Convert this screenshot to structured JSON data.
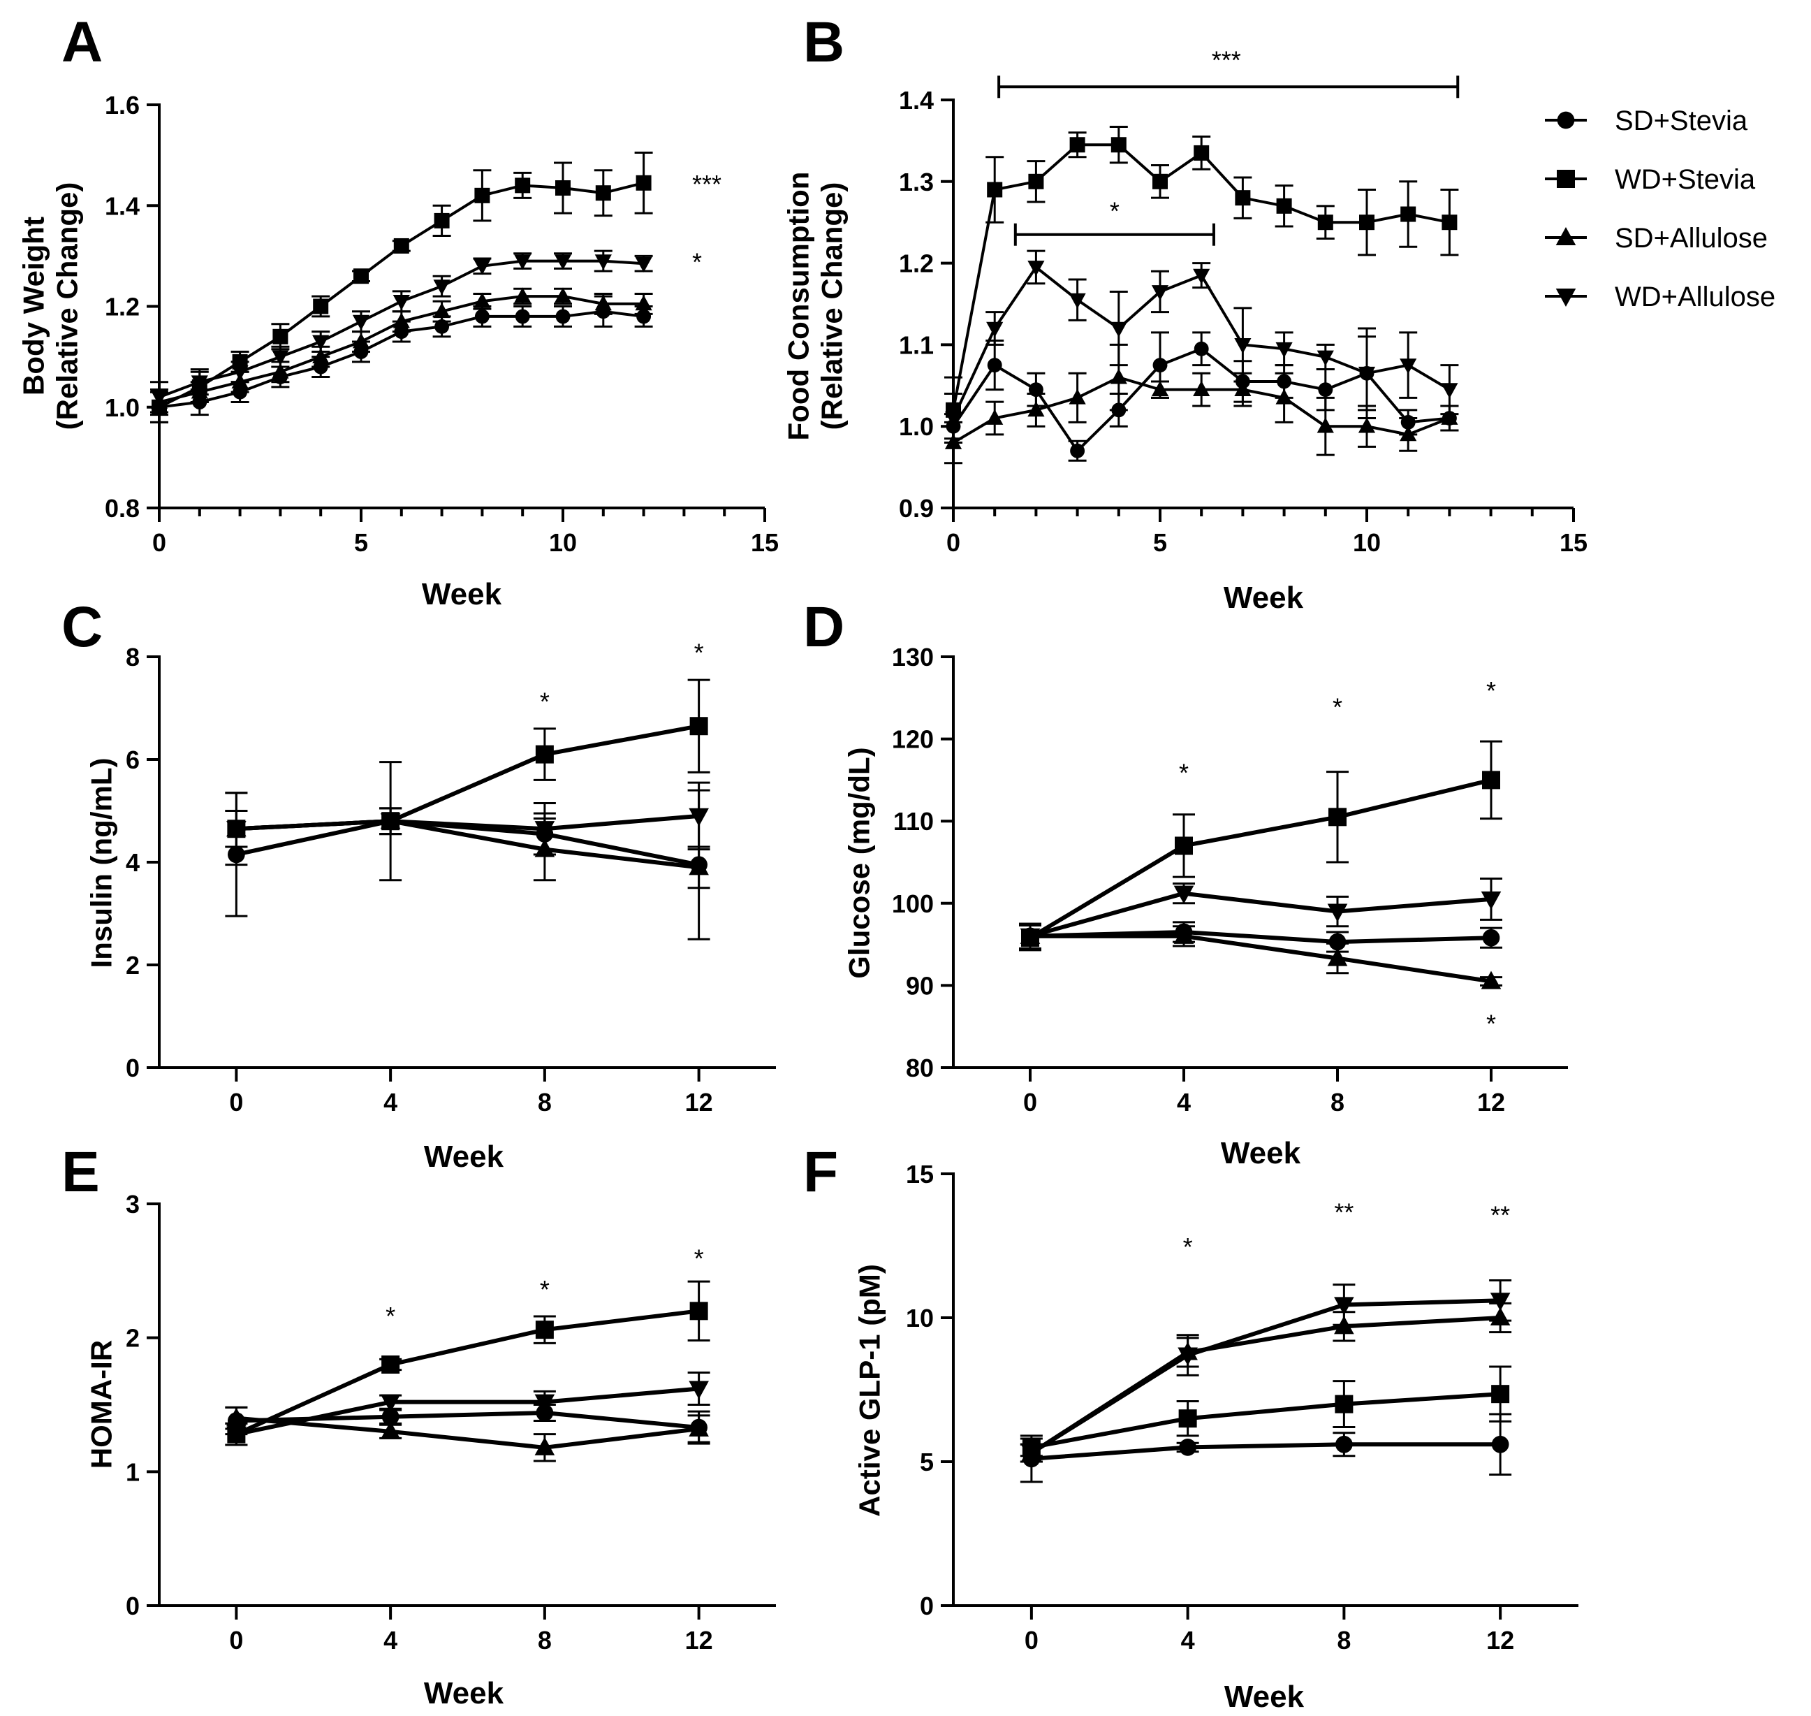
{
  "colors": {
    "ink": "#000000",
    "background": "#ffffff"
  },
  "legend": {
    "entries": [
      {
        "label": "SD+Stevia",
        "marker": "circle"
      },
      {
        "label": "WD+Stevia",
        "marker": "square"
      },
      {
        "label": "SD+Allulose",
        "marker": "triangle-up"
      },
      {
        "label": "WD+Allulose",
        "marker": "triangle-down"
      }
    ]
  },
  "chart_data": [
    {
      "panel": "A",
      "type": "line",
      "xlabel": "Week",
      "ylabel": [
        "Body Weight",
        "(Relative Change)"
      ],
      "xlim": [
        0,
        15
      ],
      "ylim": [
        0.8,
        1.6
      ],
      "xticks": [
        0,
        5,
        10,
        15
      ],
      "xticklabels": [
        "0",
        "5",
        "10",
        "15"
      ],
      "yticks": [
        0.8,
        1.0,
        1.2,
        1.4,
        1.6
      ],
      "yticklabels": [
        "0.8",
        "1.0",
        "1.2",
        "1.4",
        "1.6"
      ],
      "x": [
        0,
        1,
        2,
        3,
        4,
        5,
        6,
        7,
        8,
        9,
        10,
        11,
        12
      ],
      "series": [
        {
          "name": "SD+Stevia",
          "marker": "circle",
          "values": [
            1.0,
            1.01,
            1.03,
            1.06,
            1.08,
            1.11,
            1.15,
            1.16,
            1.18,
            1.18,
            1.18,
            1.19,
            1.18
          ],
          "err": [
            0.03,
            0.025,
            0.02,
            0.02,
            0.02,
            0.02,
            0.02,
            0.02,
            0.02,
            0.02,
            0.02,
            0.03,
            0.02
          ]
        },
        {
          "name": "WD+Stevia",
          "marker": "square",
          "values": [
            1.0,
            1.04,
            1.09,
            1.14,
            1.2,
            1.26,
            1.32,
            1.37,
            1.42,
            1.44,
            1.435,
            1.425,
            1.445
          ],
          "err": [
            0.03,
            0.03,
            0.02,
            0.025,
            0.02,
            0.01,
            0.01,
            0.03,
            0.05,
            0.025,
            0.05,
            0.045,
            0.06
          ]
        },
        {
          "name": "SD+Allulose",
          "marker": "triangle-up",
          "values": [
            1.01,
            1.03,
            1.05,
            1.07,
            1.1,
            1.13,
            1.17,
            1.19,
            1.21,
            1.22,
            1.22,
            1.205,
            1.205
          ],
          "err": [
            0.025,
            0.02,
            0.02,
            0.02,
            0.02,
            0.02,
            0.02,
            0.02,
            0.015,
            0.015,
            0.015,
            0.02,
            0.02
          ]
        },
        {
          "name": "WD+Allulose",
          "marker": "triangle-down",
          "values": [
            1.02,
            1.05,
            1.07,
            1.1,
            1.13,
            1.17,
            1.21,
            1.24,
            1.28,
            1.29,
            1.29,
            1.29,
            1.285
          ],
          "err": [
            0.03,
            0.025,
            0.02,
            0.02,
            0.02,
            0.02,
            0.02,
            0.02,
            0.015,
            0.015,
            0.015,
            0.02,
            0.015
          ]
        }
      ],
      "annotations": [
        {
          "text": "***",
          "x": 13.2,
          "y": 1.445
        },
        {
          "text": "*",
          "x": 13.2,
          "y": 1.29
        }
      ],
      "brackets": []
    },
    {
      "panel": "B",
      "type": "line",
      "xlabel": "Week",
      "ylabel": [
        "Food Consumption",
        "(Relative Change)"
      ],
      "xlim": [
        0,
        15
      ],
      "ylim": [
        0.9,
        1.4
      ],
      "xticks": [
        0,
        5,
        10,
        15
      ],
      "xticklabels": [
        "0",
        "5",
        "10",
        "15"
      ],
      "yticks": [
        0.9,
        1.0,
        1.1,
        1.2,
        1.3,
        1.4
      ],
      "yticklabels": [
        "0.9",
        "1.0",
        "1.1",
        "1.2",
        "1.3",
        "1.4"
      ],
      "x": [
        0,
        1,
        2,
        3,
        4,
        5,
        6,
        7,
        8,
        9,
        10,
        11,
        12
      ],
      "series": [
        {
          "name": "SD+Stevia",
          "marker": "circle",
          "values": [
            1.0,
            1.075,
            1.045,
            0.97,
            1.02,
            1.075,
            1.095,
            1.055,
            1.055,
            1.045,
            1.065,
            1.005,
            1.01
          ],
          "err": [
            0.015,
            0.03,
            0.02,
            0.012,
            0.02,
            0.04,
            0.02,
            0.025,
            0.02,
            0.025,
            0.055,
            0.015,
            0.015
          ]
        },
        {
          "name": "WD+Stevia",
          "marker": "square",
          "values": [
            1.02,
            1.29,
            1.3,
            1.345,
            1.345,
            1.3,
            1.335,
            1.28,
            1.27,
            1.25,
            1.25,
            1.26,
            1.25
          ],
          "err": [
            0.04,
            0.04,
            0.025,
            0.015,
            0.022,
            0.02,
            0.02,
            0.025,
            0.025,
            0.02,
            0.04,
            0.04,
            0.04
          ]
        },
        {
          "name": "SD+Allulose",
          "marker": "triangle-up",
          "values": [
            0.98,
            1.01,
            1.02,
            1.035,
            1.06,
            1.045,
            1.045,
            1.045,
            1.035,
            1.0,
            1.0,
            0.99,
            1.01
          ],
          "err": [
            0.025,
            0.02,
            0.02,
            0.03,
            0.04,
            0.01,
            0.02,
            0.02,
            0.03,
            0.035,
            0.025,
            0.02,
            0.015
          ]
        },
        {
          "name": "WD+Allulose",
          "marker": "triangle-down",
          "values": [
            1.01,
            1.12,
            1.195,
            1.155,
            1.12,
            1.165,
            1.185,
            1.1,
            1.095,
            1.085,
            1.065,
            1.075,
            1.045
          ],
          "err": [
            0.03,
            0.02,
            0.02,
            0.025,
            0.045,
            0.025,
            0.015,
            0.045,
            0.02,
            0.015,
            0.045,
            0.04,
            0.03
          ]
        }
      ],
      "annotations": [
        {
          "text": "***",
          "x": 6.6,
          "y": 1.45
        },
        {
          "text": "*",
          "x": 3.9,
          "y": 1.265
        }
      ],
      "brackets": [
        {
          "x1": 1.1,
          "x2": 12.2,
          "y": 1.416
        },
        {
          "x1": 1.5,
          "x2": 6.3,
          "y": 1.235
        }
      ]
    },
    {
      "panel": "C",
      "type": "line",
      "xlabel": "Week",
      "ylabel": [
        "Insulin (ng/mL)"
      ],
      "xlim": [
        -2,
        14
      ],
      "ylim": [
        0,
        8
      ],
      "xticks": [
        0,
        4,
        8,
        12
      ],
      "xticklabels": [
        "0",
        "4",
        "8",
        "12"
      ],
      "yticks": [
        0,
        2,
        4,
        6,
        8
      ],
      "yticklabels": [
        "0",
        "2",
        "4",
        "6",
        "8"
      ],
      "x": [
        0,
        4,
        8,
        12
      ],
      "series": [
        {
          "name": "SD+Stevia",
          "marker": "circle",
          "values": [
            4.15,
            4.8,
            4.55,
            3.95
          ],
          "err": [
            1.2,
            0.25,
            0.4,
            1.45
          ]
        },
        {
          "name": "WD+Stevia",
          "marker": "square",
          "values": [
            4.65,
            4.8,
            6.1,
            6.65
          ],
          "err": [
            0.7,
            0.25,
            0.5,
            0.9
          ]
        },
        {
          "name": "SD+Allulose",
          "marker": "triangle-up",
          "values": [
            4.65,
            4.8,
            4.25,
            3.9
          ],
          "err": [
            0.35,
            0.25,
            0.6,
            0.4
          ]
        },
        {
          "name": "WD+Allulose",
          "marker": "triangle-down",
          "values": [
            4.65,
            4.8,
            4.65,
            4.9
          ],
          "err": [
            0.35,
            1.15,
            0.5,
            0.65
          ]
        }
      ],
      "annotations": [
        {
          "text": "*",
          "x": 8,
          "y": 7.15
        },
        {
          "text": "*",
          "x": 12,
          "y": 8.1
        }
      ],
      "brackets": []
    },
    {
      "panel": "D",
      "type": "line",
      "xlabel": "Week",
      "ylabel": [
        "Glucose (mg/dL)"
      ],
      "xlim": [
        -2,
        14
      ],
      "ylim": [
        80,
        130
      ],
      "xticks": [
        0,
        4,
        8,
        12
      ],
      "xticklabels": [
        "0",
        "4",
        "8",
        "12"
      ],
      "yticks": [
        80,
        90,
        100,
        110,
        120,
        130
      ],
      "yticklabels": [
        "80",
        "90",
        "100",
        "110",
        "120",
        "130"
      ],
      "x": [
        0,
        4,
        8,
        12
      ],
      "series": [
        {
          "name": "SD+Stevia",
          "marker": "circle",
          "values": [
            96,
            96.5,
            95.3,
            95.8
          ],
          "err": [
            1.5,
            1.2,
            1.2,
            1.2
          ]
        },
        {
          "name": "WD+Stevia",
          "marker": "square",
          "values": [
            95.8,
            107,
            110.5,
            115
          ],
          "err": [
            1.5,
            3.8,
            5.5,
            4.7
          ]
        },
        {
          "name": "SD+Allulose",
          "marker": "triangle-up",
          "values": [
            96,
            96,
            93.3,
            90.5
          ],
          "err": [
            1.5,
            1.2,
            1.8,
            0.5
          ]
        },
        {
          "name": "WD+Allulose",
          "marker": "triangle-down",
          "values": [
            96,
            101.2,
            99,
            100.5
          ],
          "err": [
            1.5,
            1.2,
            1.8,
            2.5
          ]
        }
      ],
      "annotations": [
        {
          "text": "*",
          "x": 4,
          "y": 116
        },
        {
          "text": "*",
          "x": 8,
          "y": 124
        },
        {
          "text": "*",
          "x": 12,
          "y": 126
        },
        {
          "text": "*",
          "x": 12,
          "y": 85.5
        }
      ],
      "brackets": []
    },
    {
      "panel": "E",
      "type": "line",
      "xlabel": "Week",
      "ylabel": [
        "HOMA-IR"
      ],
      "xlim": [
        -2,
        14
      ],
      "ylim": [
        0,
        3
      ],
      "xticks": [
        0,
        4,
        8,
        12
      ],
      "xticklabels": [
        "0",
        "4",
        "8",
        "12"
      ],
      "yticks": [
        0,
        1,
        2,
        3
      ],
      "yticklabels": [
        "0",
        "1",
        "2",
        "3"
      ],
      "x": [
        0,
        4,
        8,
        12
      ],
      "series": [
        {
          "name": "SD+Stevia",
          "marker": "circle",
          "values": [
            1.38,
            1.41,
            1.44,
            1.33
          ],
          "err": [
            0.1,
            0.05,
            0.06,
            0.12
          ]
        },
        {
          "name": "WD+Stevia",
          "marker": "square",
          "values": [
            1.28,
            1.8,
            2.06,
            2.2
          ],
          "err": [
            0.08,
            0.04,
            0.1,
            0.22
          ]
        },
        {
          "name": "SD+Allulose",
          "marker": "triangle-up",
          "values": [
            1.4,
            1.3,
            1.18,
            1.32
          ],
          "err": [
            0.08,
            0.05,
            0.1,
            0.1
          ]
        },
        {
          "name": "WD+Allulose",
          "marker": "triangle-down",
          "values": [
            1.28,
            1.52,
            1.52,
            1.62
          ],
          "err": [
            0.08,
            0.05,
            0.08,
            0.12
          ]
        }
      ],
      "annotations": [
        {
          "text": "*",
          "x": 4,
          "y": 2.17
        },
        {
          "text": "*",
          "x": 8,
          "y": 2.37
        },
        {
          "text": "*",
          "x": 12,
          "y": 2.6
        }
      ],
      "brackets": []
    },
    {
      "panel": "F",
      "type": "line",
      "xlabel": "Week",
      "ylabel": [
        "Active GLP-1 (pM)"
      ],
      "xlim": [
        -2,
        14
      ],
      "ylim": [
        0,
        15
      ],
      "xticks": [
        0,
        4,
        8,
        12
      ],
      "xticklabels": [
        "0",
        "4",
        "8",
        "12"
      ],
      "yticks": [
        0,
        5,
        10,
        15
      ],
      "yticklabels": [
        "0",
        "5",
        "10",
        "15"
      ],
      "x": [
        0,
        4,
        8,
        12
      ],
      "series": [
        {
          "name": "SD+Stevia",
          "marker": "circle",
          "values": [
            5.1,
            5.5,
            5.6,
            5.6
          ],
          "err": [
            0.8,
            0.15,
            0.4,
            1.05
          ]
        },
        {
          "name": "WD+Stevia",
          "marker": "square",
          "values": [
            5.5,
            6.5,
            7.0,
            7.35
          ],
          "err": [
            0.3,
            0.6,
            0.8,
            0.95
          ]
        },
        {
          "name": "SD+Allulose",
          "marker": "triangle-up",
          "values": [
            5.3,
            8.8,
            9.7,
            10.0
          ],
          "err": [
            0.3,
            0.5,
            0.5,
            0.5
          ]
        },
        {
          "name": "WD+Allulose",
          "marker": "triangle-down",
          "values": [
            5.3,
            8.7,
            10.45,
            10.6
          ],
          "err": [
            0.3,
            0.7,
            0.7,
            0.7
          ]
        }
      ],
      "annotations": [
        {
          "text": "*",
          "x": 4,
          "y": 12.5
        },
        {
          "text": "**",
          "x": 8,
          "y": 13.7
        },
        {
          "text": "**",
          "x": 12,
          "y": 13.6
        }
      ],
      "brackets": []
    }
  ]
}
